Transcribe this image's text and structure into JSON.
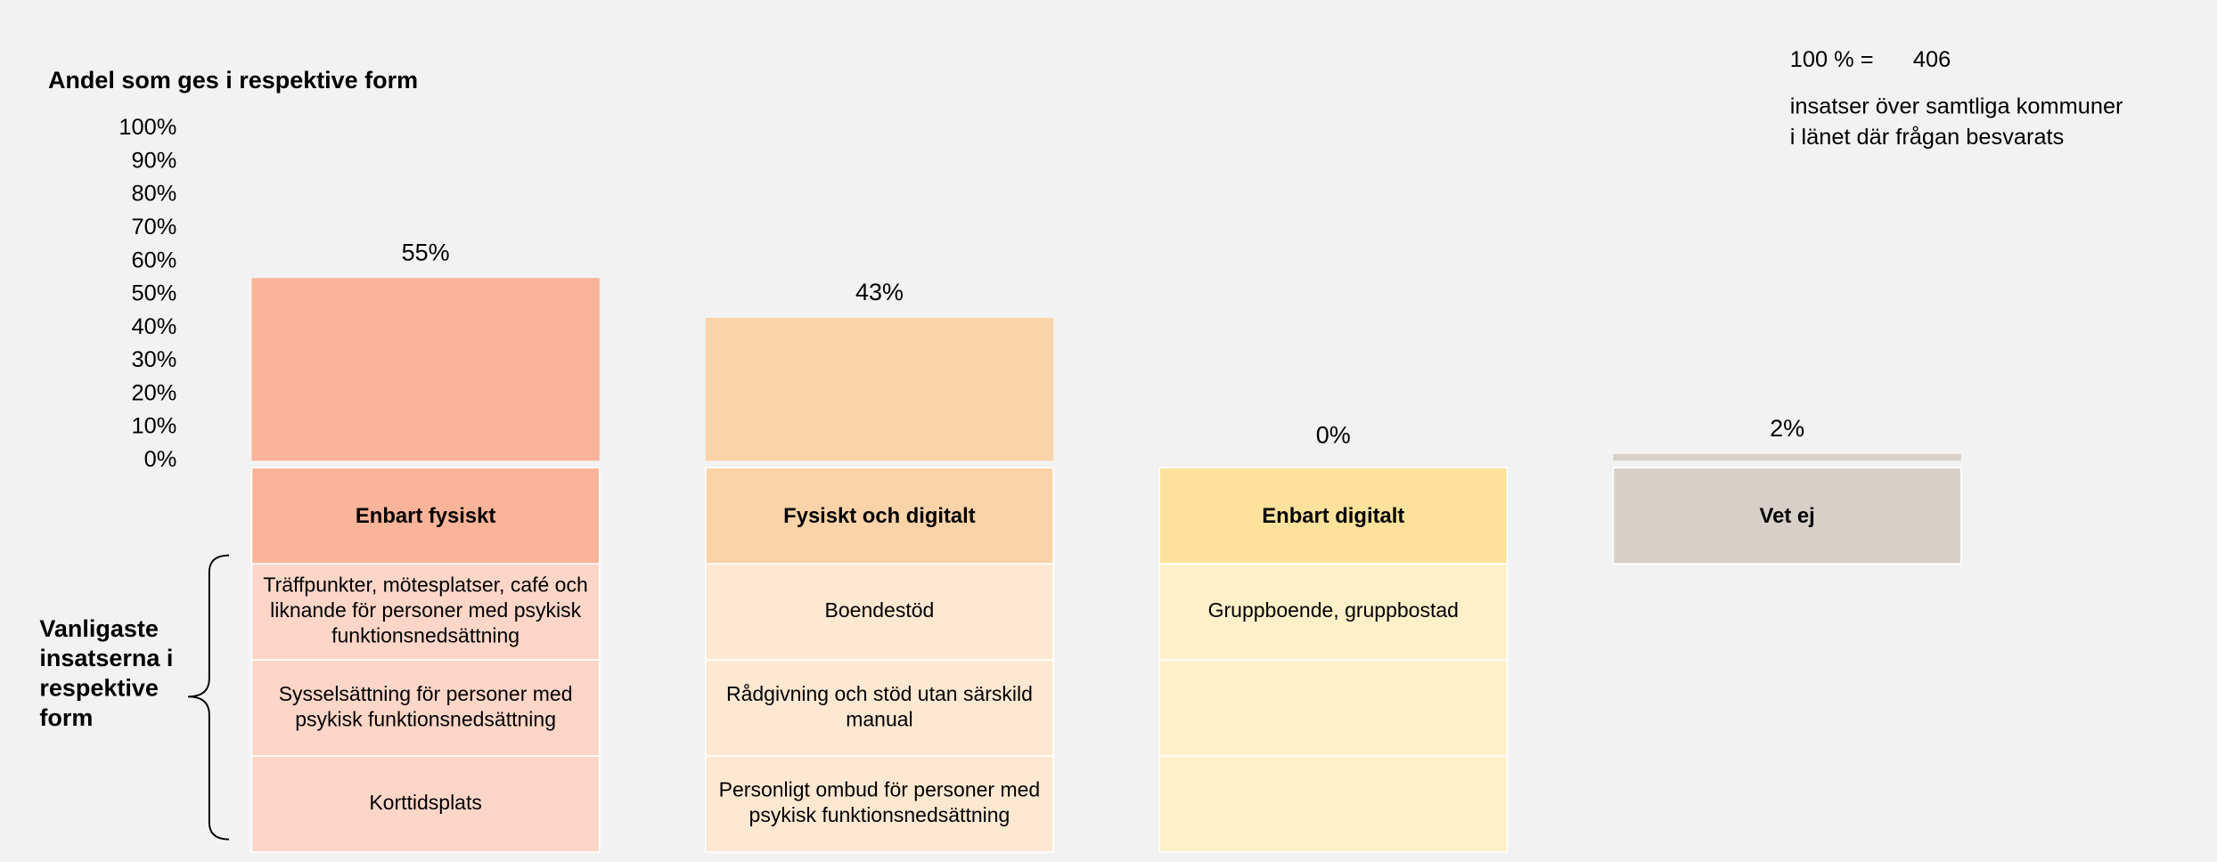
{
  "chart_data": {
    "type": "bar",
    "title": "Andel som ges i respektive form",
    "categories": [
      "Enbart fysiskt",
      "Fysiskt och digitalt",
      "Enbart digitalt",
      "Vet ej"
    ],
    "values": [
      55,
      43,
      0,
      2
    ],
    "value_labels": [
      "55%",
      "43%",
      "0%",
      "2%"
    ],
    "colors": [
      "#fbb399",
      "#fbd3a8",
      "#fee29b",
      "#d7d0c8"
    ],
    "row_colors": [
      "#fdd6c8",
      "#fee8d2",
      "#fff0ca",
      null
    ],
    "ylim": [
      0,
      100
    ],
    "yticks": [
      {
        "value": 0,
        "label": "0%"
      },
      {
        "value": 10,
        "label": "10%"
      },
      {
        "value": 20,
        "label": "20%"
      },
      {
        "value": 30,
        "label": "30%"
      },
      {
        "value": 40,
        "label": "40%"
      },
      {
        "value": 50,
        "label": "50%"
      },
      {
        "value": 60,
        "label": "60%"
      },
      {
        "value": 70,
        "label": "70%"
      },
      {
        "value": 80,
        "label": "80%"
      },
      {
        "value": 90,
        "label": "90%"
      },
      {
        "value": 100,
        "label": "100%"
      }
    ],
    "total_label": "100 % =",
    "total": 406,
    "note": [
      "insatser över samtliga kommuner",
      "i länet där frågan besvarats"
    ],
    "side_label": [
      "Vanligaste",
      "insatserna i",
      "respektive",
      "form"
    ],
    "top_interventions": [
      [
        [
          "Träffpunkter, mötesplatser, café och",
          "liknande för personer med psykisk",
          "funktionsnedsättning"
        ],
        [
          "Sysselsättning för personer med",
          "psykisk funktionsnedsättning"
        ],
        [
          "Korttidsplats"
        ]
      ],
      [
        [
          "Boendestöd"
        ],
        [
          "Rådgivning och stöd utan särskild",
          "manual"
        ],
        [
          "Personligt ombud för personer med",
          "psykisk funktionsnedsättning"
        ]
      ],
      [
        [
          "Gruppboende, gruppbostad"
        ]
      ],
      []
    ]
  }
}
